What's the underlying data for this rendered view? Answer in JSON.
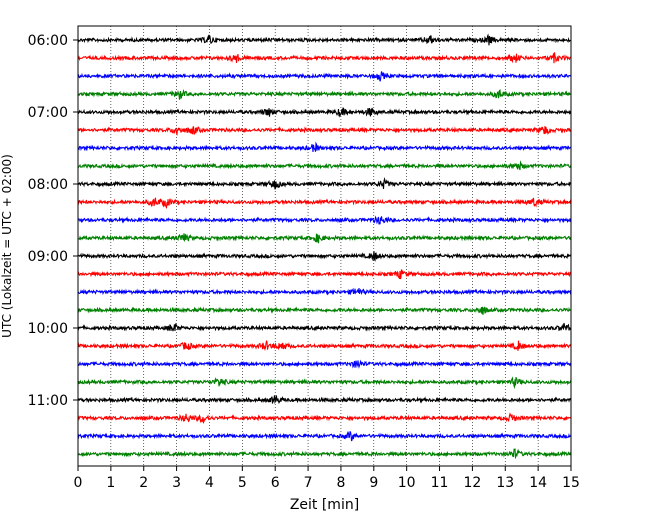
{
  "chart_data": {
    "type": "line",
    "title": "",
    "xlabel": "Zeit  [min]",
    "ylabel": "UTC (Lokalzeit = UTC + 02:00)",
    "xlim": [
      0,
      15
    ],
    "x_ticks": [
      "0",
      "1",
      "2",
      "3",
      "4",
      "5",
      "6",
      "7",
      "8",
      "9",
      "10",
      "11",
      "12",
      "13",
      "14",
      "15"
    ],
    "y_tick_labels": [
      "06:00",
      "07:00",
      "08:00",
      "09:00",
      "10:00",
      "11:00"
    ],
    "grid": "vertical dotted at each minute",
    "trace_interval_minutes": 15,
    "series_colors": [
      "#000000",
      "#ff0000",
      "#0000ff",
      "#008000"
    ],
    "traces": [
      {
        "start_time": "06:00",
        "color": "#000000"
      },
      {
        "start_time": "06:15",
        "color": "#ff0000"
      },
      {
        "start_time": "06:30",
        "color": "#0000ff"
      },
      {
        "start_time": "06:45",
        "color": "#008000"
      },
      {
        "start_time": "07:00",
        "color": "#000000"
      },
      {
        "start_time": "07:15",
        "color": "#ff0000"
      },
      {
        "start_time": "07:30",
        "color": "#0000ff"
      },
      {
        "start_time": "07:45",
        "color": "#008000"
      },
      {
        "start_time": "08:00",
        "color": "#000000"
      },
      {
        "start_time": "08:15",
        "color": "#ff0000"
      },
      {
        "start_time": "08:30",
        "color": "#0000ff"
      },
      {
        "start_time": "08:45",
        "color": "#008000"
      },
      {
        "start_time": "09:00",
        "color": "#000000"
      },
      {
        "start_time": "09:15",
        "color": "#ff0000"
      },
      {
        "start_time": "09:30",
        "color": "#0000ff"
      },
      {
        "start_time": "09:45",
        "color": "#008000"
      },
      {
        "start_time": "10:00",
        "color": "#000000"
      },
      {
        "start_time": "10:15",
        "color": "#ff0000"
      },
      {
        "start_time": "10:30",
        "color": "#0000ff"
      },
      {
        "start_time": "10:45",
        "color": "#008000"
      },
      {
        "start_time": "11:00",
        "color": "#000000"
      },
      {
        "start_time": "11:15",
        "color": "#ff0000"
      },
      {
        "start_time": "11:30",
        "color": "#0000ff"
      },
      {
        "start_time": "11:45",
        "color": "#008000"
      }
    ],
    "notable_events": [
      {
        "trace": "06:00",
        "minutes": [
          4.0,
          10.7,
          12.5
        ]
      },
      {
        "trace": "06:15",
        "minutes": [
          4.8,
          13.3,
          14.5
        ]
      },
      {
        "trace": "06:30",
        "minutes": [
          9.2
        ]
      },
      {
        "trace": "06:45",
        "minutes": [
          3.1,
          12.8
        ]
      },
      {
        "trace": "07:00",
        "minutes": [
          5.8,
          8.0,
          8.9
        ]
      },
      {
        "trace": "07:15",
        "minutes": [
          3.0,
          3.5,
          14.2
        ]
      },
      {
        "trace": "07:30",
        "minutes": [
          7.2
        ]
      },
      {
        "trace": "07:45",
        "minutes": [
          13.4
        ]
      },
      {
        "trace": "08:00",
        "minutes": [
          6.0,
          9.3
        ]
      },
      {
        "trace": "08:15",
        "minutes": [
          2.3,
          2.7,
          13.9
        ]
      },
      {
        "trace": "08:30",
        "minutes": [
          9.2
        ]
      },
      {
        "trace": "08:45",
        "minutes": [
          3.2,
          7.3
        ]
      },
      {
        "trace": "09:00",
        "minutes": [
          9.0
        ]
      },
      {
        "trace": "09:15",
        "minutes": [
          9.8
        ]
      },
      {
        "trace": "09:30",
        "minutes": [
          8.5
        ]
      },
      {
        "trace": "09:45",
        "minutes": [
          12.3
        ]
      },
      {
        "trace": "10:00",
        "minutes": [
          2.9,
          14.8
        ]
      },
      {
        "trace": "10:15",
        "minutes": [
          3.3,
          5.7,
          6.2,
          13.4
        ]
      },
      {
        "trace": "10:30",
        "minutes": [
          8.5
        ]
      },
      {
        "trace": "10:45",
        "minutes": [
          4.3,
          13.3
        ]
      },
      {
        "trace": "11:00",
        "minutes": [
          6.0
        ]
      },
      {
        "trace": "11:15",
        "minutes": [
          3.3,
          3.8,
          13.2
        ]
      },
      {
        "trace": "11:30",
        "minutes": [
          8.3
        ]
      },
      {
        "trace": "11:45",
        "minutes": [
          13.3
        ]
      }
    ]
  }
}
